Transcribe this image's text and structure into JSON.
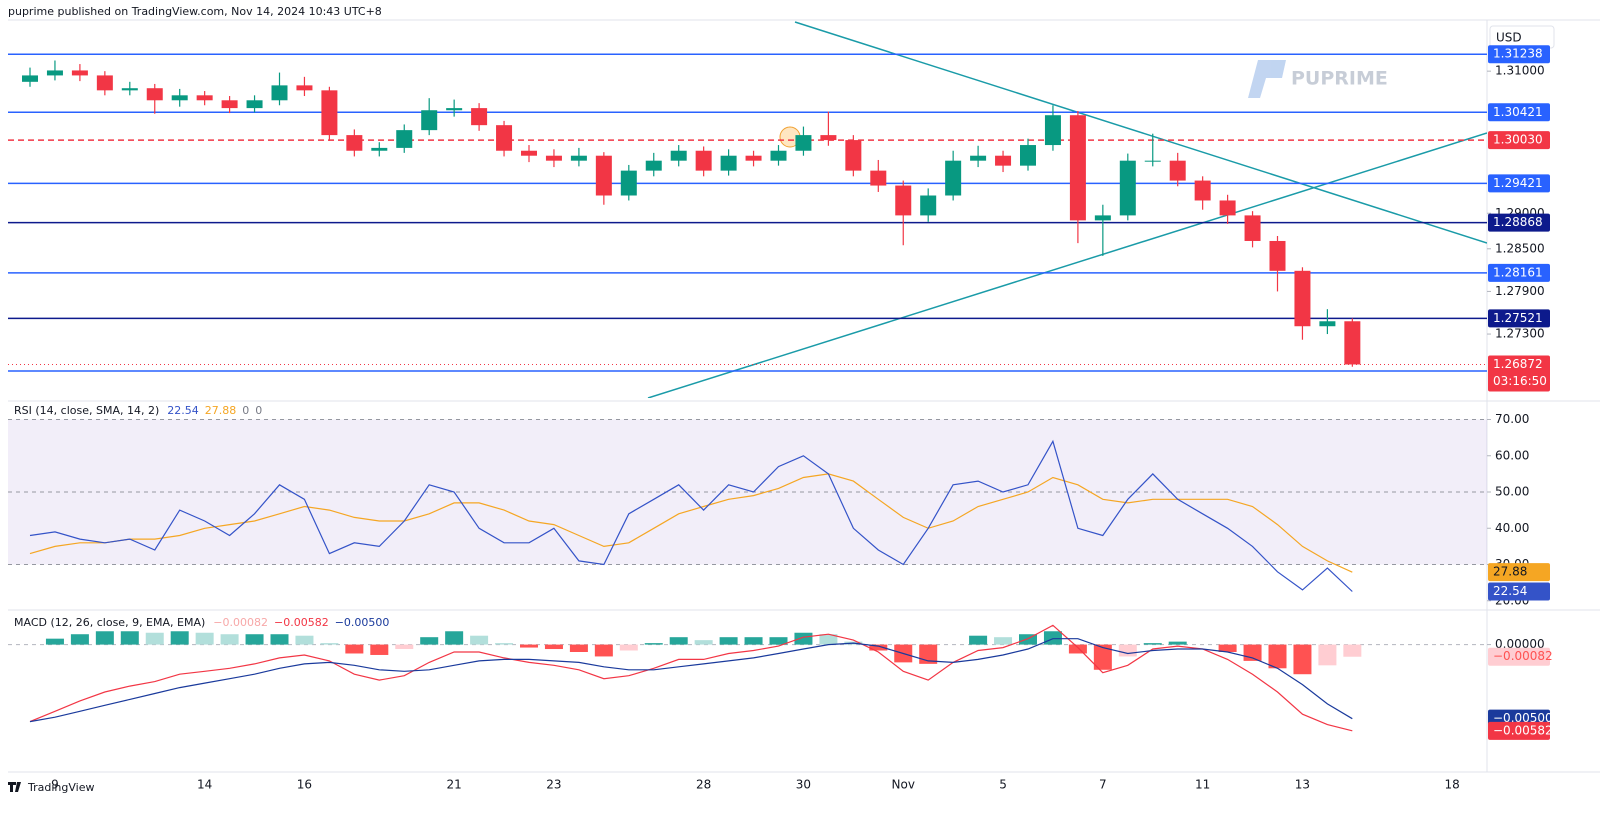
{
  "header": {
    "published": "puprime published on TradingView.com, Nov 14, 2024 10:43 UTC+8",
    "currency": "USD",
    "logo": "PUPRIME"
  },
  "footer": {
    "brand": "TradingView"
  },
  "chart_data": [
    {
      "type": "candlestick",
      "categories": [
        null,
        "9",
        null,
        null,
        null,
        null,
        null,
        "14",
        null,
        null,
        null,
        "16",
        null,
        null,
        null,
        null,
        null,
        "21",
        null,
        null,
        null,
        "23",
        null,
        null,
        null,
        null,
        null,
        "28",
        null,
        null,
        null,
        "30",
        null,
        null,
        null,
        "Nov",
        null,
        null,
        null,
        "5",
        null,
        null,
        null,
        "7",
        null,
        null,
        null,
        "11",
        null,
        null,
        null,
        "13",
        null,
        null,
        null,
        null,
        null,
        "18"
      ],
      "open": [
        1.3085,
        1.3094,
        1.3101,
        1.3094,
        1.3073,
        1.3076,
        1.3059,
        1.3066,
        1.3059,
        1.3048,
        1.3059,
        1.308,
        1.3073,
        1.301,
        1.2988,
        1.2992,
        1.3017,
        1.3045,
        1.3048,
        1.3024,
        1.2988,
        1.2981,
        1.2974,
        1.2981,
        1.2925,
        1.296,
        1.2974,
        1.2988,
        1.296,
        1.2981,
        1.2974,
        1.2988,
        1.301,
        1.3003,
        1.296,
        1.2939,
        1.2897,
        1.2925,
        1.2974,
        1.2981,
        1.2967,
        1.2996,
        1.3038,
        1.289,
        1.2897,
        1.2974,
        1.2974,
        1.2946,
        1.2918,
        1.2897,
        1.2861,
        1.2819,
        1.2741,
        1.2748,
        null,
        null,
        null,
        null
      ],
      "high": [
        1.3105,
        1.3115,
        1.311,
        1.31,
        1.3085,
        1.3082,
        1.3075,
        1.3072,
        1.3065,
        1.3066,
        1.3098,
        1.3092,
        1.3078,
        1.3018,
        1.3,
        1.3025,
        1.3062,
        1.306,
        1.3055,
        1.303,
        1.2996,
        1.299,
        1.2992,
        1.2986,
        1.2968,
        1.2985,
        1.2996,
        1.2994,
        1.299,
        1.2988,
        1.2996,
        1.3022,
        1.3043,
        1.301,
        1.2975,
        1.2946,
        1.2935,
        1.2988,
        1.2995,
        1.2988,
        1.3005,
        1.3052,
        1.3044,
        1.2912,
        1.2984,
        1.3012,
        1.2985,
        1.2952,
        1.2926,
        1.2903,
        1.2868,
        1.2824,
        1.2765,
        1.2752,
        null,
        null,
        null,
        null
      ],
      "low": [
        1.3078,
        1.3087,
        1.3086,
        1.3066,
        1.3066,
        1.304,
        1.305,
        1.3052,
        1.3041,
        1.3042,
        1.3052,
        1.3065,
        1.3002,
        1.298,
        1.298,
        1.2985,
        1.301,
        1.3036,
        1.3016,
        1.298,
        1.2972,
        1.2965,
        1.2966,
        1.2912,
        1.2918,
        1.2952,
        1.2966,
        1.2952,
        1.2953,
        1.2966,
        1.2967,
        1.2981,
        1.2995,
        1.2952,
        1.293,
        1.2855,
        1.2888,
        1.2918,
        1.2965,
        1.2958,
        1.296,
        1.2988,
        1.2858,
        1.284,
        1.289,
        1.2966,
        1.2938,
        1.2905,
        1.2885,
        1.2852,
        1.279,
        1.2722,
        1.273,
        1.2684,
        null,
        null,
        null,
        null
      ],
      "close": [
        1.3094,
        1.3101,
        1.3094,
        1.3073,
        1.3076,
        1.3059,
        1.3066,
        1.3059,
        1.3048,
        1.3059,
        1.308,
        1.3073,
        1.301,
        1.2988,
        1.2992,
        1.3017,
        1.3045,
        1.3048,
        1.3024,
        1.2988,
        1.2981,
        1.2974,
        1.2981,
        1.2925,
        1.296,
        1.2974,
        1.2988,
        1.296,
        1.2981,
        1.2974,
        1.2988,
        1.301,
        1.3003,
        1.296,
        1.2939,
        1.2897,
        1.2925,
        1.2974,
        1.2981,
        1.2967,
        1.2996,
        1.3038,
        1.289,
        1.2897,
        1.2974,
        1.2974,
        1.2946,
        1.2918,
        1.2897,
        1.2861,
        1.2819,
        1.2741,
        1.2748,
        1.26872,
        null,
        null,
        null,
        null
      ],
      "up_color": "#089981",
      "down_color": "#f23645",
      "ylim": [
        1.264,
        1.3172
      ],
      "yticks": [
        {
          "value": 1.31,
          "label": "1.31000"
        },
        {
          "value": 1.29,
          "label": "1.29000"
        },
        {
          "value": 1.285,
          "label": "1.28500"
        },
        {
          "value": 1.279,
          "label": "1.27900"
        },
        {
          "value": 1.273,
          "label": "1.27300"
        }
      ],
      "levels": [
        {
          "value": 1.31238,
          "label": "1.31238",
          "color": "#2962ff"
        },
        {
          "value": 1.30421,
          "label": "1.30421",
          "color": "#2962ff"
        },
        {
          "value": 1.3003,
          "label": "1.30030",
          "color": "#f23645",
          "style": "dashed"
        },
        {
          "value": 1.29421,
          "label": "1.29421",
          "color": "#2962ff"
        },
        {
          "value": 1.28868,
          "label": "1.28868",
          "color": "#0d1a8c"
        },
        {
          "value": 1.28161,
          "label": "1.28161",
          "color": "#2962ff"
        },
        {
          "value": 1.27521,
          "label": "1.27521",
          "color": "#0d1a8c"
        },
        {
          "value": 1.2678,
          "label": null,
          "color": "#2962ff"
        }
      ],
      "countdown": "03:16:50"
    },
    {
      "type": "line",
      "params": "RSI (14, close, SMA, 14, 2)",
      "readout": [
        "22.54",
        "27.88",
        "0",
        "0"
      ],
      "series": [
        {
          "name": "RSI",
          "color": "#3453c8",
          "values": [
            38,
            39,
            37,
            36,
            37,
            34,
            45,
            42,
            38,
            44,
            52,
            48,
            33,
            36,
            35,
            42,
            52,
            50,
            40,
            36,
            36,
            40,
            31,
            30,
            44,
            48,
            52,
            45,
            52,
            50,
            57,
            60,
            55,
            40,
            34,
            30,
            40,
            52,
            53,
            50,
            52,
            64,
            40,
            38,
            48,
            55,
            48,
            44,
            40,
            35,
            28,
            23,
            29,
            22.54,
            null,
            null,
            null,
            null
          ]
        },
        {
          "name": "SMA",
          "color": "#f5a623",
          "values": [
            33,
            35,
            36,
            36,
            37,
            37,
            38,
            40,
            41,
            42,
            44,
            46,
            45,
            43,
            42,
            42,
            44,
            47,
            47,
            45,
            42,
            41,
            38,
            35,
            36,
            40,
            44,
            46,
            48,
            49,
            51,
            54,
            55,
            53,
            48,
            43,
            40,
            42,
            46,
            48,
            50,
            54,
            52,
            48,
            47,
            48,
            48,
            48,
            48,
            46,
            41,
            35,
            31,
            27.88,
            null,
            null,
            null,
            null
          ]
        }
      ],
      "band": [
        30,
        70
      ],
      "band_color": "#7e57c2",
      "levels": [
        70,
        50,
        30
      ],
      "ylim": [
        18,
        74
      ],
      "yticks": [
        {
          "value": 70,
          "label": "70.00"
        },
        {
          "value": 60,
          "label": "60.00"
        },
        {
          "value": 50,
          "label": "50.00"
        },
        {
          "value": 40,
          "label": "40.00"
        },
        {
          "value": 30,
          "label": "30.00"
        },
        {
          "value": 20,
          "label": "20.00"
        }
      ]
    },
    {
      "type": "macd",
      "params": "MACD (12, 26, close, 9, EMA, EMA)",
      "readout": [
        "−0.00082",
        "−0.00582",
        "−0.00500"
      ],
      "histogram": [
        0,
        0.0004,
        0.0007,
        0.0009,
        0.0009,
        0.0008,
        0.0009,
        0.0008,
        0.0007,
        0.0007,
        0.0007,
        0.0006,
        0.0001,
        -0.0006,
        -0.0007,
        -0.0003,
        0.0005,
        0.0009,
        0.0006,
        0.0001,
        -0.0002,
        -0.0003,
        -0.0005,
        -0.0008,
        -0.0004,
        0.0001,
        0.0005,
        0.0003,
        0.0005,
        0.0005,
        0.0005,
        0.0008,
        0.0007,
        0.0002,
        -0.0004,
        -0.0012,
        -0.0013,
        0,
        0.0006,
        0.0005,
        0.0007,
        0.0009,
        -0.0006,
        -0.0017,
        -0.0008,
        0.0001,
        0.0002,
        0,
        -0.0005,
        -0.0011,
        -0.0016,
        -0.002,
        -0.0014,
        -0.00082,
        null,
        null,
        null,
        null
      ],
      "hist_colors": [
        "#26a69a",
        "#b2dfdb",
        "#ff5252",
        "#ffcdd2"
      ],
      "series": [
        {
          "name": "MACD",
          "color": "#f23645",
          "values": [
            -0.0052,
            -0.0045,
            -0.0038,
            -0.0032,
            -0.0028,
            -0.0025,
            -0.002,
            -0.0018,
            -0.0016,
            -0.0013,
            -0.0009,
            -0.0007,
            -0.0011,
            -0.002,
            -0.0024,
            -0.0021,
            -0.0012,
            -0.0005,
            -0.0005,
            -0.0009,
            -0.0012,
            -0.0014,
            -0.0017,
            -0.0023,
            -0.0021,
            -0.0016,
            -0.001,
            -0.001,
            -0.0006,
            -0.0004,
            -0.0001,
            0.0005,
            0.0007,
            0.0003,
            -0.0005,
            -0.0018,
            -0.0024,
            -0.0012,
            -0.0004,
            -0.0002,
            0.0004,
            0.0013,
            -0.0002,
            -0.0019,
            -0.0014,
            -0.0003,
            -0.0001,
            -0.0003,
            -0.001,
            -0.002,
            -0.0032,
            -0.0047,
            -0.0054,
            -0.00582,
            null,
            null,
            null,
            null
          ]
        },
        {
          "name": "Signal",
          "color": "#1a3a9c",
          "values": [
            -0.0052,
            -0.0049,
            -0.0045,
            -0.0041,
            -0.0037,
            -0.0033,
            -0.0029,
            -0.0026,
            -0.0023,
            -0.002,
            -0.0016,
            -0.0013,
            -0.0012,
            -0.0014,
            -0.0017,
            -0.0018,
            -0.0017,
            -0.0014,
            -0.0011,
            -0.001,
            -0.001,
            -0.0011,
            -0.0012,
            -0.0015,
            -0.0017,
            -0.0017,
            -0.0015,
            -0.0013,
            -0.0011,
            -0.0009,
            -0.0006,
            -0.0003,
            0,
            0.0001,
            -0.0001,
            -0.0006,
            -0.0011,
            -0.0012,
            -0.001,
            -0.0007,
            -0.0003,
            0.0004,
            0.0004,
            -0.0002,
            -0.0006,
            -0.0004,
            -0.0003,
            -0.0003,
            -0.0005,
            -0.0009,
            -0.0016,
            -0.0027,
            -0.004,
            -0.005,
            null,
            null,
            null,
            null
          ]
        }
      ],
      "ylim": [
        -0.0086,
        0.0022
      ],
      "yticks": [
        {
          "value": 0,
          "label": "0.00000"
        }
      ]
    }
  ]
}
